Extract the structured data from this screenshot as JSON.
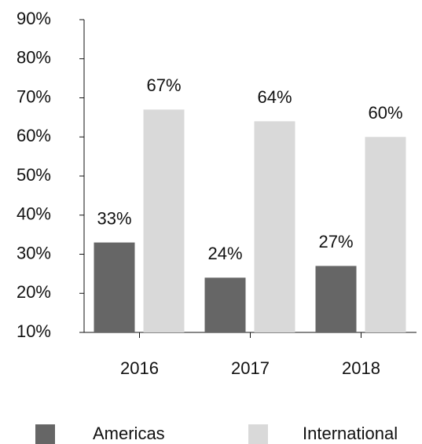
{
  "chart_data": {
    "type": "bar",
    "categories": [
      "2016",
      "2017",
      "2018"
    ],
    "series": [
      {
        "name": "Americas",
        "color": "#666666",
        "values": [
          33,
          24,
          27
        ],
        "value_labels": [
          "33%",
          "24%",
          "27%"
        ]
      },
      {
        "name": "International",
        "color": "#d9d9d9",
        "values": [
          67,
          64,
          60
        ],
        "value_labels": [
          "67%",
          "64%",
          "60%"
        ]
      }
    ],
    "ylim": [
      10,
      90
    ],
    "yticks": [
      {
        "value": 10,
        "label": "10%"
      },
      {
        "value": 20,
        "label": "20%"
      },
      {
        "value": 30,
        "label": "30%"
      },
      {
        "value": 40,
        "label": "40%"
      },
      {
        "value": 50,
        "label": "50%"
      },
      {
        "value": 60,
        "label": "60%"
      },
      {
        "value": 70,
        "label": "70%"
      },
      {
        "value": 80,
        "label": "80%"
      },
      {
        "value": 90,
        "label": "90%"
      }
    ],
    "grid": false,
    "legend": "bottom"
  }
}
